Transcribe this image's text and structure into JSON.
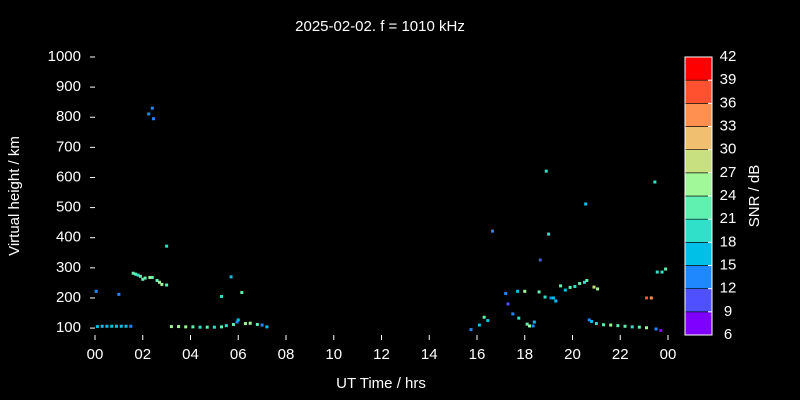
{
  "chart_data": {
    "type": "scatter",
    "title": "2025-02-02. f = 1010 kHz",
    "x_label": "UT Time / hrs",
    "y_label": "Virtual height / km",
    "colorbar_label": "SNR / dB",
    "xlim": [
      0,
      24
    ],
    "ylim": [
      77,
      1000
    ],
    "xticks": [
      {
        "value": 0,
        "label": "00"
      },
      {
        "value": 2,
        "label": "02"
      },
      {
        "value": 4,
        "label": "04"
      },
      {
        "value": 6,
        "label": "06"
      },
      {
        "value": 8,
        "label": "08"
      },
      10,
      12,
      14,
      16,
      18,
      20,
      22,
      {
        "value": 24,
        "label": "00"
      }
    ],
    "yticks": [
      100,
      200,
      300,
      400,
      500,
      600,
      700,
      800,
      900,
      1000
    ],
    "clim": [
      6,
      42
    ],
    "cticks": [
      6,
      9,
      12,
      15,
      18,
      21,
      24,
      27,
      30,
      33,
      36,
      39,
      42
    ],
    "colors": [
      "#8000ff",
      "#4f50ff",
      "#2088ff",
      "#00c0e8",
      "#30e0c8",
      "#60f0b0",
      "#a0f898",
      "#c8e080",
      "#f0c070",
      "#ff9050",
      "#ff5030",
      "#ff0000"
    ],
    "x": [
      0.05,
      0.1,
      0.3,
      0.5,
      0.7,
      0.9,
      1.1,
      1.3,
      1.5,
      1.0,
      1.6,
      1.7,
      1.8,
      1.9,
      2.0,
      2.1,
      2.3,
      2.4,
      2.25,
      2.4,
      2.45,
      2.6,
      2.7,
      2.8,
      3.0,
      3.0,
      3.2,
      3.5,
      3.8,
      4.1,
      4.4,
      4.7,
      5.0,
      5.3,
      5.3,
      5.7,
      6.15,
      5.5,
      5.8,
      5.95,
      6.0,
      6.3,
      6.5,
      6.8,
      7.0,
      7.2,
      15.75,
      16.1,
      16.3,
      16.45,
      16.65,
      17.2,
      17.3,
      17.5,
      17.75,
      17.7,
      18.0,
      18.1,
      18.2,
      18.4,
      18.35,
      18.6,
      18.65,
      18.9,
      19.0,
      18.85,
      19.1,
      19.2,
      19.3,
      19.5,
      19.7,
      19.9,
      20.1,
      20.3,
      20.5,
      20.6,
      20.55,
      20.9,
      21.05,
      20.7,
      20.8,
      21.0,
      21.3,
      21.6,
      21.9,
      22.2,
      22.5,
      22.8,
      23.1,
      23.1,
      23.3,
      23.45,
      23.55,
      23.75,
      23.9,
      23.5,
      23.7
    ],
    "y": [
      222,
      105,
      106,
      106,
      106,
      106,
      106,
      106,
      106,
      212,
      282,
      279,
      276,
      272,
      262,
      266,
      268,
      268,
      811,
      830,
      795,
      258,
      252,
      245,
      243,
      372,
      105,
      105,
      104,
      104,
      103,
      103,
      103,
      104,
      205,
      270,
      218,
      108,
      112,
      120,
      127,
      115,
      116,
      112,
      110,
      104,
      95,
      110,
      136,
      125,
      422,
      215,
      180,
      147,
      133,
      222,
      222,
      113,
      107,
      120,
      107,
      220,
      326,
      621,
      412,
      203,
      200,
      200,
      190,
      240,
      226,
      235,
      238,
      248,
      252,
      258,
      512,
      236,
      230,
      127,
      122,
      115,
      111,
      110,
      108,
      106,
      104,
      103,
      101,
      200,
      200,
      585,
      286,
      286,
      296,
      97,
      92
    ],
    "snr": [
      13,
      16,
      17,
      16,
      17,
      16,
      17,
      17,
      12,
      14,
      21,
      23,
      20,
      22,
      23,
      22,
      24,
      22,
      12,
      13,
      12,
      21,
      24,
      25,
      23,
      20,
      26,
      24,
      25,
      22,
      20,
      23,
      19,
      22,
      19,
      17,
      23,
      19,
      22,
      13,
      17,
      25,
      26,
      21,
      12,
      16,
      14,
      15,
      21,
      16,
      14,
      12,
      11,
      13,
      20,
      17,
      24,
      23,
      25,
      17,
      12,
      22,
      11,
      18,
      20,
      20,
      14,
      17,
      15,
      22,
      16,
      21,
      19,
      23,
      20,
      22,
      17,
      27,
      25,
      14,
      17,
      20,
      23,
      24,
      22,
      21,
      19,
      22,
      24,
      38,
      35,
      19,
      18,
      20,
      21,
      13,
      8
    ]
  }
}
